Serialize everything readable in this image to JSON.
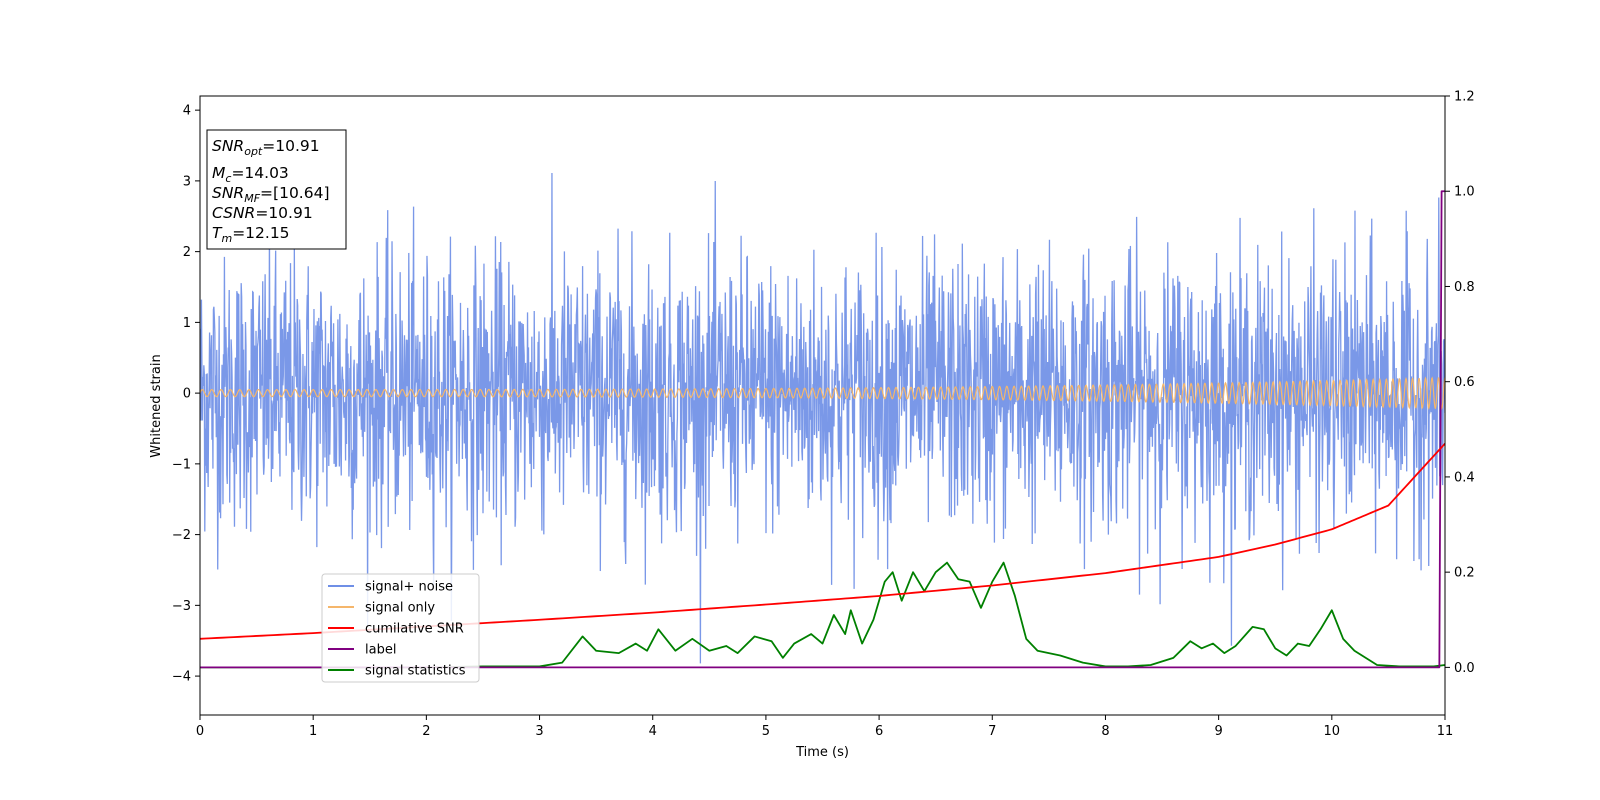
{
  "chart_data": {
    "type": "line",
    "xlabel": "Time (s)",
    "ylabel": "Whitened strain",
    "xlim": [
      0,
      11
    ],
    "ylim": [
      -4.55,
      4.2
    ],
    "ylim_right": [
      -0.1,
      1.2
    ],
    "x_ticks": [
      "0",
      "1",
      "2",
      "3",
      "4",
      "5",
      "6",
      "7",
      "8",
      "9",
      "10",
      "11"
    ],
    "y_ticks": [
      "−4",
      "−3",
      "−2",
      "−1",
      "0",
      "1",
      "2",
      "3",
      "4"
    ],
    "y2_ticks": [
      "0.0",
      "0.2",
      "0.4",
      "0.6",
      "0.8",
      "1.0",
      "1.2"
    ],
    "grid": false,
    "legend_position": "lower-left",
    "info_box": {
      "snr_opt": {
        "base": "SNR",
        "sub": "opt",
        "value": "=10.91"
      },
      "mc": {
        "base": "M",
        "sub": "c",
        "value": "=14.03"
      },
      "snr_mf": {
        "base": "SNR",
        "sub": "MF",
        "value": "=[10.64]"
      },
      "csnr": {
        "base": "CSNR",
        "sub": "",
        "value": "=10.91"
      },
      "tm": {
        "base": "T",
        "sub": "m",
        "value": "=12.15"
      }
    },
    "series": [
      {
        "name": "signal+ noise",
        "axis": "left",
        "color": "#6f8fe6",
        "description": "white noise centered at 0, std ~0.95",
        "stats": {
          "mean": 0,
          "std": 0.95,
          "min": -4.15,
          "max": 3.8
        }
      },
      {
        "name": "signal only",
        "axis": "left",
        "color": "#f5b66b",
        "description": "chirp",
        "stats": {
          "amplitude_start": 0.05,
          "amplitude_end": 0.22
        }
      },
      {
        "name": "cumilative SNR",
        "axis": "right",
        "color": "#ff0000",
        "x": [
          0,
          1,
          2,
          3,
          4,
          5,
          6,
          7,
          8,
          9,
          9.5,
          10,
          10.5,
          11
        ],
        "values": [
          0.06,
          0.072,
          0.086,
          0.1,
          0.115,
          0.132,
          0.15,
          0.172,
          0.198,
          0.232,
          0.258,
          0.29,
          0.34,
          0.47
        ]
      },
      {
        "name": "label",
        "axis": "right",
        "color": "#800080",
        "x": [
          0,
          10.95,
          10.97,
          11
        ],
        "values": [
          0,
          0,
          1,
          1
        ]
      },
      {
        "name": "signal statistics",
        "axis": "right",
        "color": "#008000",
        "x": [
          0,
          1,
          2,
          2.5,
          3,
          3.2,
          3.38,
          3.5,
          3.7,
          3.85,
          3.95,
          4.05,
          4.2,
          4.35,
          4.5,
          4.65,
          4.75,
          4.9,
          5.05,
          5.15,
          5.25,
          5.4,
          5.5,
          5.6,
          5.7,
          5.75,
          5.85,
          5.95,
          6.05,
          6.12,
          6.2,
          6.3,
          6.4,
          6.5,
          6.6,
          6.7,
          6.8,
          6.9,
          7.0,
          7.1,
          7.2,
          7.3,
          7.4,
          7.5,
          7.6,
          7.8,
          8.0,
          8.2,
          8.4,
          8.6,
          8.75,
          8.85,
          8.95,
          9.05,
          9.15,
          9.3,
          9.4,
          9.5,
          9.6,
          9.7,
          9.8,
          9.9,
          10.0,
          10.1,
          10.2,
          10.4,
          10.6,
          10.9,
          11.0
        ],
        "values": [
          0,
          0,
          0,
          0.002,
          0.002,
          0.01,
          0.065,
          0.035,
          0.03,
          0.05,
          0.035,
          0.08,
          0.035,
          0.06,
          0.035,
          0.045,
          0.03,
          0.065,
          0.055,
          0.02,
          0.05,
          0.07,
          0.05,
          0.11,
          0.07,
          0.12,
          0.05,
          0.1,
          0.18,
          0.2,
          0.14,
          0.2,
          0.16,
          0.2,
          0.22,
          0.185,
          0.18,
          0.125,
          0.18,
          0.22,
          0.15,
          0.06,
          0.035,
          0.03,
          0.025,
          0.01,
          0.002,
          0.002,
          0.005,
          0.02,
          0.055,
          0.04,
          0.05,
          0.03,
          0.045,
          0.085,
          0.08,
          0.04,
          0.025,
          0.05,
          0.045,
          0.08,
          0.12,
          0.06,
          0.035,
          0.005,
          0.002,
          0.002,
          0.005
        ]
      }
    ]
  }
}
